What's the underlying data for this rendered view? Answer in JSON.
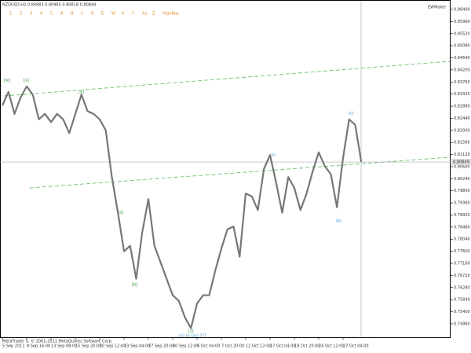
{
  "header": "NZDUSD,H2 0.80983 0.80985 0.80818 0.80849",
  "toolbar": [
    "1",
    "2",
    "3",
    "4",
    "5",
    "A",
    "B",
    "C",
    "D",
    "E",
    "W",
    "X",
    "Y",
    "Xx",
    "Z",
    "HighBox"
  ],
  "indicator": "EWMaker",
  "footer": "MetaTrader 5, © 2001-2011 MetaQuotes Software Corp.",
  "annotations": [
    "[w]",
    "[x]",
    "[y]",
    "(a)",
    "(b)",
    "(c)",
    "(x) or (xx) ???",
    "[z]",
    "[a]",
    "[b]"
  ],
  "chart_data": {
    "type": "line",
    "color": "#777777",
    "categories": [
      "5 Sep 2011",
      null,
      null,
      null,
      "8 Sep 16:00",
      null,
      null,
      null,
      "13 Sep 08:00",
      null,
      null,
      null,
      "15 Sep 20:00",
      null,
      null,
      null,
      "20 Sep 12:00",
      null,
      null,
      null,
      "23 Sep 04:00",
      null,
      null,
      null,
      "27 Sep 20:00",
      null,
      null,
      null,
      "30 Sep 12:00",
      null,
      null,
      null,
      "5 Oct 04:00",
      null,
      null,
      null,
      "7 Oct 20:00",
      null,
      null,
      null,
      "12 Oct 12:00",
      null,
      null,
      null,
      "17 Oct 04:00",
      null,
      null,
      null,
      "19 Oct 20:00",
      null,
      null,
      null,
      "24 Oct 12:00",
      null,
      null,
      null,
      "27 Oct 04:00",
      null,
      null,
      null
    ],
    "values": [
      0.829,
      0.834,
      0.826,
      0.832,
      0.836,
      0.833,
      0.824,
      0.826,
      0.823,
      0.826,
      0.824,
      0.819,
      0.826,
      0.833,
      0.827,
      0.826,
      0.824,
      0.82,
      0.803,
      0.79,
      0.776,
      0.778,
      0.766,
      0.783,
      0.795,
      0.778,
      0.772,
      0.766,
      0.76,
      0.758,
      0.752,
      0.748,
      0.757,
      0.76,
      0.76,
      0.769,
      0.777,
      0.784,
      0.785,
      0.774,
      0.797,
      0.796,
      0.791,
      0.806,
      0.811,
      0.801,
      0.79,
      0.803,
      0.799,
      0.791,
      0.797,
      0.805,
      0.812,
      0.807,
      0.804,
      0.792,
      0.81,
      0.824,
      0.822,
      0.8085
    ],
    "current_price": 0.80849,
    "ylim": [
      0.745,
      0.866
    ],
    "yticks": [
      {
        "value": 0.7496,
        "label": "0.74960"
      },
      {
        "value": 0.754,
        "label": "0.75400"
      },
      {
        "value": 0.7584,
        "label": "0.75840"
      },
      {
        "value": 0.7628,
        "label": "0.76280"
      },
      {
        "value": 0.7672,
        "label": "0.76720"
      },
      {
        "value": 0.7716,
        "label": "0.77160"
      },
      {
        "value": 0.776,
        "label": "0.77600"
      },
      {
        "value": 0.7804,
        "label": "0.78040"
      },
      {
        "value": 0.7848,
        "label": "0.78480"
      },
      {
        "value": 0.7892,
        "label": "0.78920"
      },
      {
        "value": 0.7936,
        "label": "0.79360"
      },
      {
        "value": 0.798,
        "label": "0.79800"
      },
      {
        "value": 0.8024,
        "label": "0.80240"
      },
      {
        "value": 0.8068,
        "label": "0.80680"
      },
      {
        "value": 0.8112,
        "label": "0.81120"
      },
      {
        "value": 0.8156,
        "label": "0.81560"
      },
      {
        "value": 0.82,
        "label": "0.82000"
      },
      {
        "value": 0.8244,
        "label": "0.82440"
      },
      {
        "value": 0.8288,
        "label": "0.82880"
      },
      {
        "value": 0.8332,
        "label": "0.83320"
      },
      {
        "value": 0.8376,
        "label": "0.83760"
      },
      {
        "value": 0.842,
        "label": "0.84200"
      },
      {
        "value": 0.8464,
        "label": "0.84640"
      },
      {
        "value": 0.8508,
        "label": "0.85080"
      },
      {
        "value": 0.8552,
        "label": "0.85520"
      },
      {
        "value": 0.8596,
        "label": "0.85960"
      },
      {
        "value": 0.864,
        "label": "0.86400"
      }
    ]
  }
}
